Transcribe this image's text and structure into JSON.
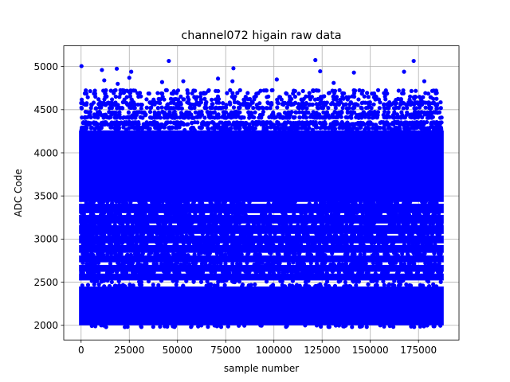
{
  "chart_data": {
    "type": "scatter",
    "title": "channel072 higain raw data",
    "xlabel": "sample number",
    "ylabel": "ADC Code",
    "xlim": [
      -9000,
      196000
    ],
    "ylim": [
      1830,
      5240
    ],
    "x_range": [
      0,
      187000
    ],
    "grid": true,
    "marker_color": "#0000ff",
    "xticks": [
      0,
      25000,
      50000,
      75000,
      100000,
      125000,
      150000,
      175000
    ],
    "xtick_labels": [
      "0",
      "25000",
      "50000",
      "75000",
      "100000",
      "125000",
      "150000",
      "175000"
    ],
    "yticks": [
      2000,
      2500,
      3000,
      3500,
      4000,
      4500,
      5000
    ],
    "ytick_labels": [
      "2000",
      "2500",
      "3000",
      "3500",
      "4000",
      "4500",
      "5000"
    ],
    "dense_band": [
      2000,
      4250
    ],
    "dense_bands": [
      [
        2000,
        2450
      ],
      [
        2520,
        2600
      ],
      [
        2620,
        2700
      ],
      [
        2730,
        2810
      ],
      [
        2840,
        2930
      ],
      [
        2950,
        3040
      ],
      [
        3060,
        3160
      ],
      [
        3180,
        3280
      ],
      [
        3300,
        3410
      ],
      [
        3430,
        4260
      ]
    ],
    "upper_levels": [
      4290,
      4330,
      4350,
      4410,
      4440,
      4470,
      4520,
      4560,
      4580,
      4620,
      4650,
      4690,
      4720
    ],
    "outliers": [
      {
        "x": 200,
        "y": 5005
      },
      {
        "x": 10800,
        "y": 4960
      },
      {
        "x": 18500,
        "y": 4975
      },
      {
        "x": 26000,
        "y": 4940
      },
      {
        "x": 25000,
        "y": 4870
      },
      {
        "x": 45500,
        "y": 5065
      },
      {
        "x": 79000,
        "y": 4980
      },
      {
        "x": 121500,
        "y": 5075
      },
      {
        "x": 124000,
        "y": 4945
      },
      {
        "x": 141500,
        "y": 4930
      },
      {
        "x": 172500,
        "y": 5065
      },
      {
        "x": 167500,
        "y": 4940
      },
      {
        "x": 12000,
        "y": 4840
      },
      {
        "x": 19000,
        "y": 4800
      },
      {
        "x": 42000,
        "y": 4820
      },
      {
        "x": 53000,
        "y": 4830
      },
      {
        "x": 71000,
        "y": 4860
      },
      {
        "x": 78500,
        "y": 4830
      },
      {
        "x": 101500,
        "y": 4850
      },
      {
        "x": 131000,
        "y": 4810
      },
      {
        "x": 178000,
        "y": 4830
      }
    ]
  }
}
